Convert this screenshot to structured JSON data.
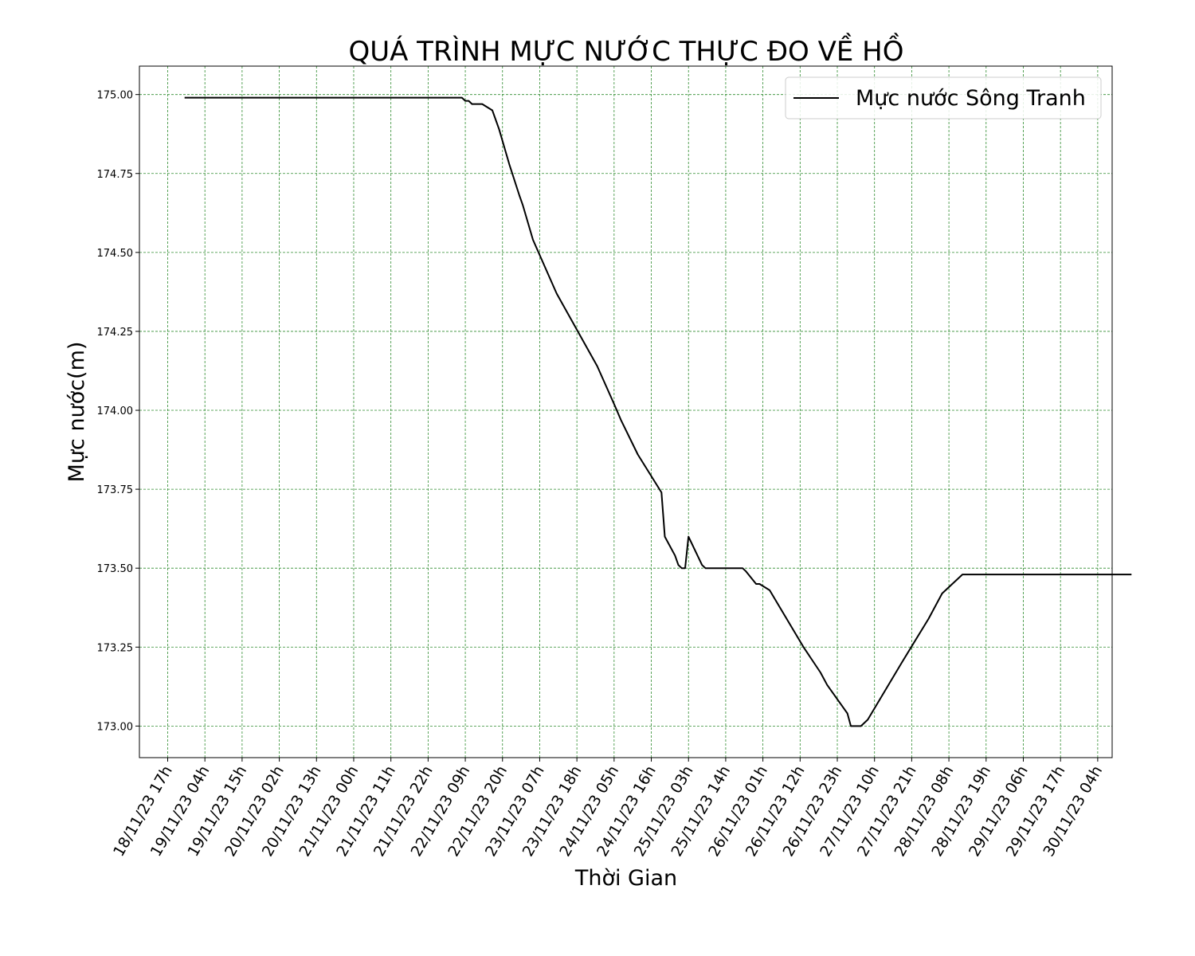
{
  "chart_data": {
    "type": "line",
    "title": "QUÁ TRÌNH MỰC NƯỚC THỰC ĐO VỀ HỒ",
    "xlabel": "Thời Gian",
    "ylabel": "Mực nước(m)",
    "x_tick_labels": [
      "18/11/23 17h",
      "19/11/23 04h",
      "19/11/23 15h",
      "20/11/23 02h",
      "20/11/23 13h",
      "21/11/23 00h",
      "21/11/23 11h",
      "21/11/23 22h",
      "22/11/23 09h",
      "22/11/23 20h",
      "23/11/23 07h",
      "23/11/23 18h",
      "24/11/23 05h",
      "24/11/23 16h",
      "25/11/23 03h",
      "25/11/23 14h",
      "26/11/23 01h",
      "26/11/23 12h",
      "26/11/23 23h",
      "27/11/23 10h",
      "27/11/23 21h",
      "28/11/23 08h",
      "28/11/23 19h",
      "29/11/23 06h",
      "29/11/23 17h",
      "30/11/23 04h"
    ],
    "y_tick_labels": [
      "173.00",
      "173.25",
      "173.50",
      "173.75",
      "174.00",
      "174.25",
      "174.50",
      "174.75",
      "175.00"
    ],
    "y_ticks": [
      173.0,
      173.25,
      173.5,
      173.75,
      174.0,
      174.25,
      174.5,
      174.75,
      175.0
    ],
    "ylim": [
      172.9,
      175.09
    ],
    "grid": true,
    "grid_color": "#2e8b2e",
    "line_color": "#000000",
    "legend_position": "top-right",
    "series": [
      {
        "name": "Mực nước Sông Tranh",
        "points": [
          [
            "18/11/23 22h",
            174.99
          ],
          [
            "22/11/23 05h",
            174.99
          ],
          [
            "22/11/23 08h",
            174.99
          ],
          [
            "22/11/23 09h",
            174.98
          ],
          [
            "22/11/23 10h",
            174.98
          ],
          [
            "22/11/23 11h",
            174.97
          ],
          [
            "22/11/23 14h",
            174.97
          ],
          [
            "22/11/23 17h",
            174.95
          ],
          [
            "22/11/23 19h",
            174.89
          ],
          [
            "22/11/23 22h",
            174.78
          ],
          [
            "23/11/23 01h",
            174.68
          ],
          [
            "23/11/23 02h",
            174.65
          ],
          [
            "23/11/23 05h",
            174.54
          ],
          [
            "23/11/23 12h",
            174.37
          ],
          [
            "24/11/23 00h",
            174.14
          ],
          [
            "24/11/23 05h",
            174.02
          ],
          [
            "24/11/23 07h",
            173.97
          ],
          [
            "24/11/23 12h",
            173.86
          ],
          [
            "24/11/23 19h",
            173.74
          ],
          [
            "24/11/23 20h",
            173.6
          ],
          [
            "24/11/23 23h",
            173.54
          ],
          [
            "25/11/23 00h",
            173.51
          ],
          [
            "25/11/23 01h",
            173.5
          ],
          [
            "25/11/23 02h",
            173.5
          ],
          [
            "25/11/23 03h",
            173.6
          ],
          [
            "25/11/23 07h",
            173.51
          ],
          [
            "25/11/23 08h",
            173.5
          ],
          [
            "25/11/23 19h",
            173.5
          ],
          [
            "25/11/23 20h",
            173.49
          ],
          [
            "25/11/23 23h",
            173.45
          ],
          [
            "26/11/23 00h",
            173.45
          ],
          [
            "26/11/23 03h",
            173.43
          ],
          [
            "26/11/23 13h",
            173.25
          ],
          [
            "26/11/23 18h",
            173.17
          ],
          [
            "26/11/23 20h",
            173.13
          ],
          [
            "27/11/23 02h",
            173.04
          ],
          [
            "27/11/23 03h",
            173.0
          ],
          [
            "27/11/23 06h",
            173.0
          ],
          [
            "27/11/23 08h",
            173.02
          ],
          [
            "27/11/23 18h",
            173.2
          ],
          [
            "28/11/23 02h",
            173.34
          ],
          [
            "28/11/23 06h",
            173.42
          ],
          [
            "28/11/23 12h",
            173.48
          ],
          [
            "30/11/23 14h",
            173.48
          ]
        ]
      }
    ]
  }
}
